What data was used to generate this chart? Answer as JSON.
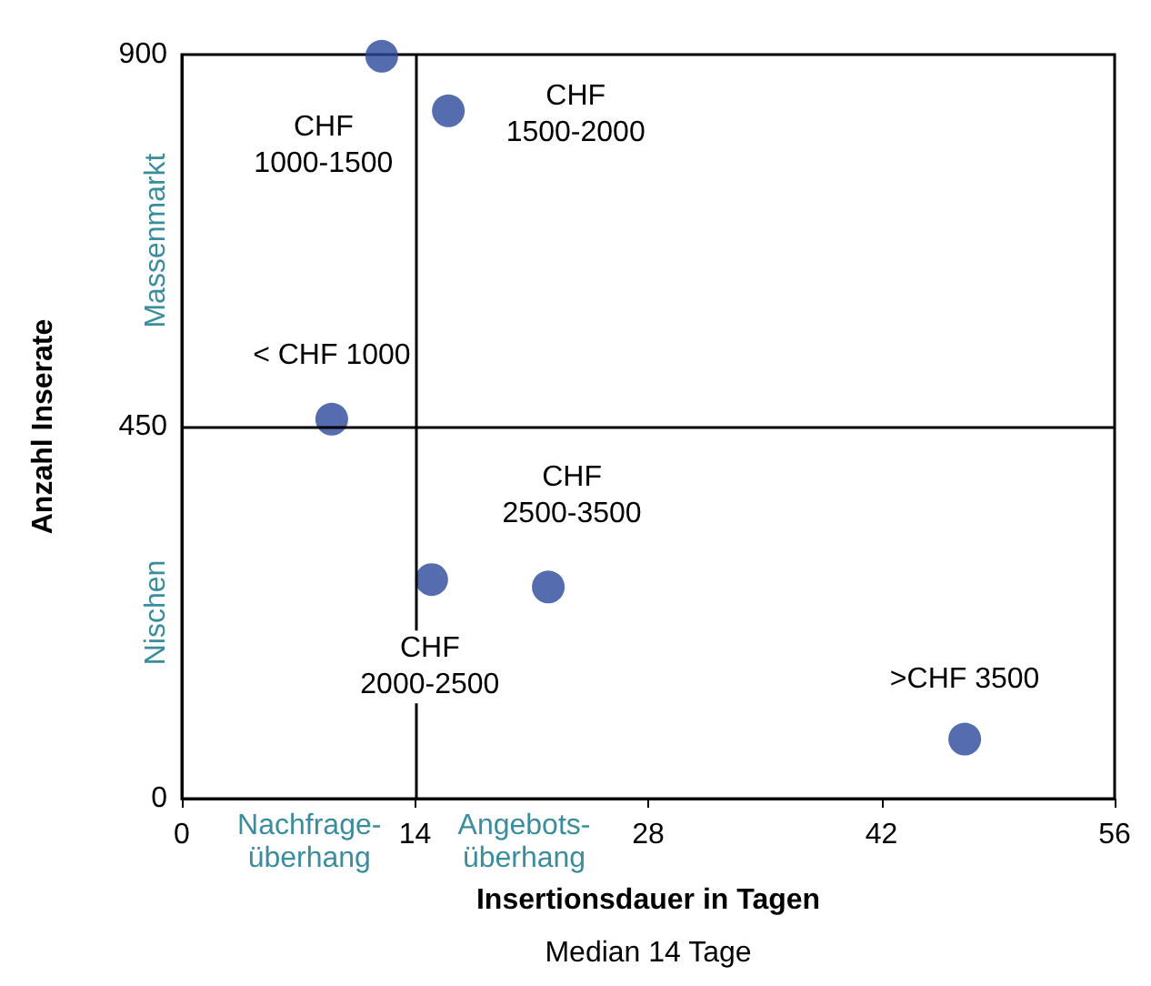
{
  "chart_data": {
    "type": "scatter",
    "xlabel": "Insertionsdauer in Tagen",
    "ylabel": "Anzahl Inserate",
    "x": [
      12,
      16,
      9,
      15,
      22,
      47
    ],
    "series": [
      {
        "color": "#2b479b",
        "values": [
          898,
          832,
          459,
          265,
          256,
          72
        ]
      }
    ],
    "xlim": [
      0,
      56
    ],
    "xticks": [
      0,
      14,
      28,
      42,
      56
    ],
    "ylim": [
      0,
      900
    ],
    "yticks": [
      0,
      450,
      900
    ],
    "grid": false,
    "marker": "circle",
    "ref_lines": [
      {
        "axis": "x",
        "value": 14,
        "color": "#000000"
      },
      {
        "axis": "y",
        "value": 450,
        "color": "#000000"
      }
    ],
    "annotations": [
      "Massenmarkt",
      "Nischen",
      "Nachfrage-\nüberhang",
      "Angebots-\nüberhang",
      "Median 14 Tage",
      {
        "text": "CHF\n1000-1500",
        "x": 12,
        "y": 898
      },
      {
        "text": "CHF\n1500-2000",
        "x": 16,
        "y": 832
      },
      {
        "text": "< CHF 1000",
        "x": 9,
        "y": 459
      },
      {
        "text": "CHF\n2500-3500",
        "x": 22,
        "y": 256
      },
      {
        "text": "CHF\n2000-2500",
        "x": 15,
        "y": 265
      },
      {
        "text": ">CHF 3500",
        "x": 47,
        "y": 72
      }
    ]
  }
}
